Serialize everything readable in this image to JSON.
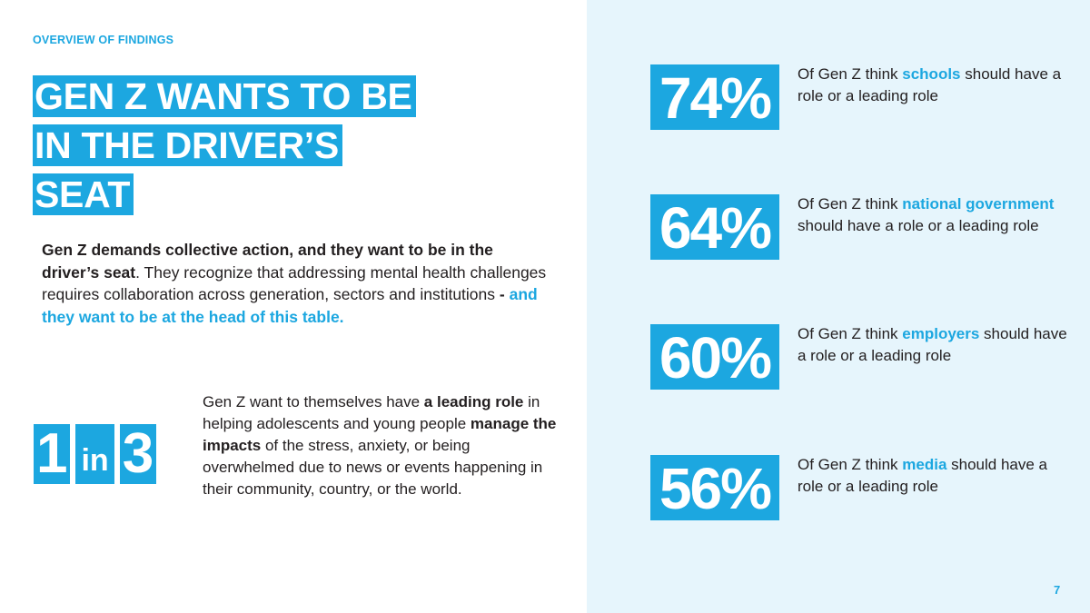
{
  "section_label": "OVERVIEW OF FINDINGS",
  "title_lines": [
    "GEN Z WANTS TO BE",
    "IN THE DRIVER’S",
    "SEAT"
  ],
  "intro": {
    "bold": "Gen Z demands collective action, and they want to be in the driver’s seat",
    "middle": ". They recognize that addressing mental health challenges requires collaboration across generation, sectors and institutions ",
    "dash": "-",
    "accent": " and they want to be at the head of this table."
  },
  "ratio": {
    "first": "1",
    "word": "in",
    "second": "3",
    "desc": {
      "p1": "Gen Z want to themselves have ",
      "b1": "a leading role",
      "p2": " in helping adolescents and young people ",
      "b2": "manage the impacts",
      "p3": " of the stress, anxiety, or being overwhelmed due to news or events happening in their community, country, or the world."
    }
  },
  "stats": [
    {
      "value": "74%",
      "pre": "Of Gen Z think ",
      "highlight": "schools",
      "post": " should have a role or a leading role"
    },
    {
      "value": "64%",
      "pre": "Of Gen Z think ",
      "highlight": "national government",
      "post": " should have a role or a leading role"
    },
    {
      "value": "60%",
      "pre": "Of Gen Z think ",
      "highlight": "employers",
      "post": " should have a role or a leading role"
    },
    {
      "value": "56%",
      "pre": "Of Gen Z think ",
      "highlight": "media",
      "post": " should have a role or a leading role"
    }
  ],
  "page_number": "7",
  "colors": {
    "accent": "#1ca7e0",
    "panel": "#e6f5fc",
    "text": "#231f20"
  }
}
